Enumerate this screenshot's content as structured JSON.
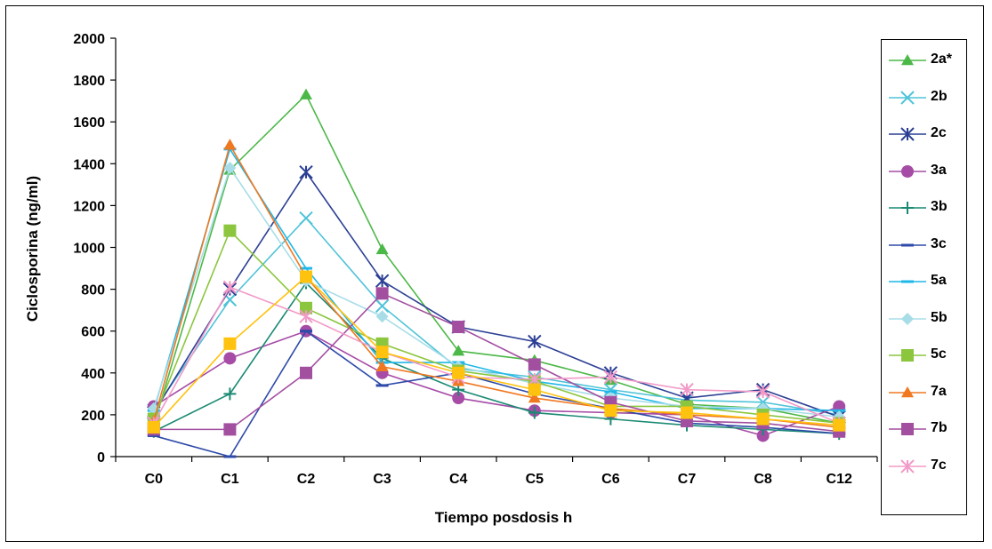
{
  "chart_data": {
    "type": "line",
    "title": "",
    "xlabel": "Tiempo posdosis h",
    "ylabel": "Ciclosporina (ng/ml)",
    "ylim": [
      0,
      2000
    ],
    "yticks": [
      "0",
      "200",
      "400",
      "600",
      "800",
      "1000",
      "1200",
      "1400",
      "1600",
      "1800",
      "2000"
    ],
    "categories": [
      "C0",
      "C1",
      "C2",
      "C3",
      "C4",
      "C5",
      "C6",
      "C7",
      "C8",
      "C12"
    ],
    "grid": false,
    "legend_position": "right",
    "series": [
      {
        "name": "2a*",
        "color": "#4CB848",
        "marker": "triangle",
        "values": [
          150,
          1370,
          1730,
          990,
          505,
          460,
          365,
          250,
          230,
          160
        ]
      },
      {
        "name": "2b",
        "color": "#4FC3D8",
        "marker": "x",
        "values": [
          220,
          750,
          1140,
          720,
          420,
          380,
          320,
          270,
          260,
          200
        ]
      },
      {
        "name": "2c",
        "color": "#2B3F94",
        "marker": "asterisk",
        "values": [
          210,
          800,
          1360,
          840,
          620,
          550,
          400,
          280,
          320,
          190
        ]
      },
      {
        "name": "3a",
        "color": "#A64CA6",
        "marker": "circle",
        "values": [
          240,
          470,
          600,
          400,
          280,
          220,
          210,
          200,
          100,
          240
        ]
      },
      {
        "name": "3b",
        "color": "#1A8A73",
        "marker": "plus",
        "values": [
          120,
          300,
          830,
          470,
          320,
          210,
          180,
          150,
          130,
          110
        ]
      },
      {
        "name": "3c",
        "color": "#2D4AA8",
        "marker": "dash",
        "values": [
          100,
          0,
          600,
          340,
          400,
          300,
          230,
          160,
          140,
          110
        ]
      },
      {
        "name": "5a",
        "color": "#1FB7E8",
        "marker": "dash",
        "values": [
          220,
          1470,
          900,
          450,
          450,
          360,
          310,
          230,
          230,
          220
        ]
      },
      {
        "name": "5b",
        "color": "#A8DDE8",
        "marker": "diamond",
        "values": [
          230,
          1380,
          840,
          670,
          430,
          350,
          280,
          240,
          230,
          190
        ]
      },
      {
        "name": "5c",
        "color": "#8CC63F",
        "marker": "square",
        "values": [
          180,
          1080,
          710,
          540,
          410,
          360,
          240,
          240,
          200,
          160
        ]
      },
      {
        "name": "7a",
        "color": "#F07820",
        "marker": "triangle",
        "values": [
          170,
          1490,
          860,
          430,
          360,
          280,
          230,
          200,
          180,
          140
        ]
      },
      {
        "name": "7b",
        "color": "#A34FA0",
        "marker": "square",
        "values": [
          130,
          130,
          400,
          780,
          620,
          440,
          260,
          170,
          160,
          120
        ]
      },
      {
        "name": "7c",
        "color": "#F29AC8",
        "marker": "asterisk",
        "values": [
          160,
          810,
          670,
          500,
          380,
          370,
          380,
          320,
          310,
          160
        ]
      },
      {
        "name": "",
        "color": "#FFC20E",
        "marker": "square",
        "values": [
          140,
          540,
          860,
          500,
          400,
          320,
          220,
          210,
          180,
          150
        ]
      }
    ]
  }
}
